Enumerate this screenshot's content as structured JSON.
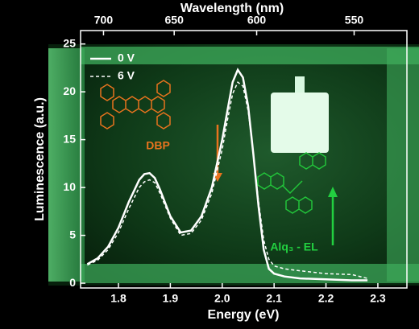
{
  "chart_data": {
    "type": "line",
    "xlabel": "Energy (eV)",
    "ylabel": "Luminescence (a.u.)",
    "x2label": "Wavelength (nm)",
    "x": [
      1.74,
      1.76,
      1.78,
      1.8,
      1.82,
      1.84,
      1.85,
      1.86,
      1.87,
      1.88,
      1.9,
      1.92,
      1.94,
      1.96,
      1.98,
      2.0,
      2.01,
      2.02,
      2.03,
      2.04,
      2.05,
      2.06,
      2.07,
      2.08,
      2.09,
      2.1,
      2.12,
      2.15,
      2.2,
      2.25,
      2.28
    ],
    "series": [
      {
        "name": "0 V",
        "color": "#ffffff",
        "linestyle": "solid",
        "values": [
          2.0,
          2.6,
          3.8,
          5.8,
          8.5,
          10.8,
          11.4,
          11.5,
          11.0,
          9.8,
          7.0,
          5.3,
          5.5,
          7.0,
          10.0,
          15.0,
          18.0,
          21.0,
          22.3,
          21.5,
          18.5,
          13.5,
          8.0,
          3.5,
          1.5,
          1.0,
          0.7,
          0.5,
          0.4,
          0.3,
          0.3
        ]
      },
      {
        "name": "6 V",
        "color": "#ffffff",
        "linestyle": "dashed",
        "values": [
          1.9,
          2.4,
          3.5,
          5.3,
          7.8,
          10.0,
          10.6,
          10.8,
          10.5,
          9.4,
          6.8,
          5.0,
          5.2,
          6.6,
          9.4,
          14.0,
          17.0,
          19.8,
          21.0,
          20.6,
          18.0,
          13.5,
          8.5,
          4.5,
          2.5,
          1.8,
          1.5,
          1.3,
          1.0,
          0.9,
          0.5
        ]
      }
    ],
    "xlim": [
      1.727,
      2.356
    ],
    "ylim": [
      -0.5,
      26.4
    ],
    "xticks": [
      1.8,
      1.9,
      {
        "value": 2,
        "label": "2.0"
      },
      2.1,
      2.2,
      2.3
    ],
    "yticks": [
      0,
      5,
      10,
      15,
      20,
      25
    ],
    "x2ticks": [
      700,
      650,
      600,
      550
    ],
    "annotations": [
      "DBP",
      "Alq₃ - EL"
    ],
    "legend": "upper left"
  }
}
